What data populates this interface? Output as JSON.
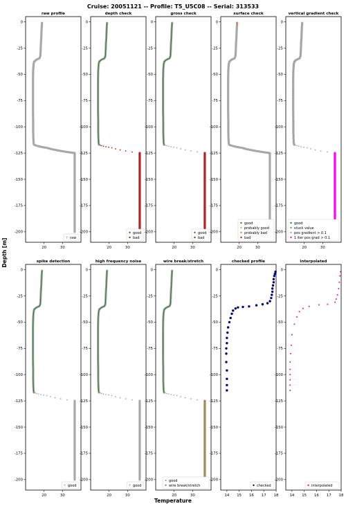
{
  "figure": {
    "title": "Cruise: 20051121 -- Profile: T5_U5C08 --  Serial: 313533",
    "ylabel": "Depth [m]",
    "xlabel": "Temperature"
  },
  "colors": {
    "raw_gray": "#a8a8a8",
    "good_green": "#2e7d32",
    "bad_red": "#b22222",
    "prob_good": "#9acd32",
    "prob_bad": "#e07b39",
    "stuck_olive": "#8b8b5a",
    "magenta": "#ff00ff",
    "wire_tan": "#a0895a",
    "navy": "#000080",
    "pink": "#ff1493"
  },
  "chart_data": [
    {
      "id": "p0",
      "type": "scatter",
      "title": "raw profile",
      "xlim": [
        10,
        40
      ],
      "ylim": [
        -210,
        5
      ],
      "xticks": [
        20,
        30
      ],
      "yticks": [
        0,
        -25,
        -50,
        -75,
        -100,
        -125,
        -150,
        -175,
        -200
      ],
      "x_unit": "",
      "legend": [
        {
          "label": "raw",
          "marker": "plus",
          "color": "raw_gray"
        }
      ],
      "legend_position": "lower-right",
      "layers": [
        {
          "source": "full",
          "style": "band",
          "color": "raw_gray",
          "name": "raw"
        }
      ]
    },
    {
      "id": "p1",
      "type": "scatter",
      "title": "depth check",
      "xlim": [
        10,
        40
      ],
      "ylim": [
        -210,
        5
      ],
      "xticks": [
        20,
        30
      ],
      "yticks": [
        0,
        -25,
        -50,
        -75,
        -100,
        -125,
        -150,
        -175,
        -200
      ],
      "legend": [
        {
          "label": "good",
          "marker": "dot",
          "color": "good_green"
        },
        {
          "label": "bad",
          "marker": "dot",
          "color": "bad_red"
        }
      ],
      "legend_position": "lower-right",
      "layers": [
        {
          "source": "upper",
          "style": "band",
          "color": "raw_gray",
          "name": "raw"
        },
        {
          "source": "upper",
          "style": "thin",
          "color": "good_green",
          "name": "good"
        },
        {
          "source": "tail",
          "style": "dots",
          "color": "bad_red",
          "name": "bad"
        },
        {
          "source": "bottom",
          "style": "band",
          "color": "bad_red",
          "name": "bad"
        }
      ]
    },
    {
      "id": "p2",
      "type": "scatter",
      "title": "gross check",
      "xlim": [
        10,
        40
      ],
      "ylim": [
        -210,
        5
      ],
      "xticks": [
        20,
        30
      ],
      "yticks": [
        0,
        -25,
        -50,
        -75,
        -100,
        -125,
        -150,
        -175,
        -200
      ],
      "legend": [
        {
          "label": "good",
          "marker": "dot",
          "color": "good_green"
        },
        {
          "label": "bad",
          "marker": "dot",
          "color": "bad_red"
        }
      ],
      "legend_position": "lower-right",
      "layers": [
        {
          "source": "upper",
          "style": "band",
          "color": "raw_gray",
          "name": "raw"
        },
        {
          "source": "upper",
          "style": "thin",
          "color": "good_green",
          "name": "good"
        },
        {
          "source": "tail",
          "style": "dots",
          "color": "raw_gray",
          "name": "raw"
        },
        {
          "source": "bottom",
          "style": "band",
          "color": "bad_red",
          "name": "bad"
        }
      ]
    },
    {
      "id": "p3",
      "type": "scatter",
      "title": "surface check",
      "xlim": [
        10,
        40
      ],
      "ylim": [
        -210,
        5
      ],
      "xticks": [
        20,
        30
      ],
      "yticks": [
        0,
        -25,
        -50,
        -75,
        -100,
        -125,
        -150,
        -175,
        -200
      ],
      "legend": [
        {
          "label": "good",
          "marker": "dot",
          "color": "good_green"
        },
        {
          "label": "probably good",
          "marker": "dot",
          "color": "prob_good"
        },
        {
          "label": "probably bad",
          "marker": "dot",
          "color": "prob_bad"
        },
        {
          "label": "bad",
          "marker": "dot",
          "color": "bad_red"
        }
      ],
      "legend_position": "lower-right",
      "layers": [
        {
          "source": "full",
          "style": "band",
          "color": "raw_gray",
          "name": "raw"
        },
        {
          "source": "surface",
          "style": "dots",
          "color": "prob_bad",
          "name": "probably bad"
        }
      ]
    },
    {
      "id": "p4",
      "type": "scatter",
      "title": "vertical gradient check",
      "xlim": [
        10,
        40
      ],
      "ylim": [
        -210,
        5
      ],
      "xticks": [
        20,
        30
      ],
      "yticks": [
        0,
        -25,
        -50,
        -75,
        -100,
        -125,
        -150,
        -175,
        -200
      ],
      "legend": [
        {
          "label": "good",
          "marker": "dot",
          "color": "good_green"
        },
        {
          "label": "stuck value",
          "marker": "dot",
          "color": "stuck_olive"
        },
        {
          "label": "pos gradient > 0.1",
          "marker": "dot",
          "color": "raw_gray"
        },
        {
          "label": "1 iter pos grad > 0.1",
          "marker": "dot",
          "color": "magenta"
        }
      ],
      "legend_position": "lower-right",
      "layers": [
        {
          "source": "upper",
          "style": "band",
          "color": "raw_gray",
          "name": "raw"
        },
        {
          "source": "upper",
          "style": "speckle",
          "color": "stuck_olive",
          "name": "stuck value"
        },
        {
          "source": "tail",
          "style": "dots",
          "color": "raw_gray",
          "name": "raw"
        },
        {
          "source": "bottom",
          "style": "band",
          "color": "magenta",
          "name": "1 iter pos grad > 0.1"
        }
      ]
    },
    {
      "id": "p5",
      "type": "scatter",
      "title": "spike detection",
      "xlim": [
        10,
        40
      ],
      "ylim": [
        -210,
        5
      ],
      "xticks": [
        20,
        30
      ],
      "yticks": [
        0,
        -25,
        -50,
        -75,
        -100,
        -125,
        -150,
        -175,
        -200
      ],
      "legend": [
        {
          "label": "good",
          "marker": "plus",
          "color": "raw_gray"
        }
      ],
      "legend_position": "lower-right",
      "layers": [
        {
          "source": "upper",
          "style": "band",
          "color": "raw_gray",
          "name": "raw"
        },
        {
          "source": "upper",
          "style": "thin",
          "color": "good_green",
          "name": "good"
        },
        {
          "source": "tail",
          "style": "dots",
          "color": "raw_gray",
          "name": "raw"
        },
        {
          "source": "bottom",
          "style": "band",
          "color": "raw_gray",
          "name": "raw"
        }
      ]
    },
    {
      "id": "p6",
      "type": "scatter",
      "title": "high frequency noise",
      "xlim": [
        10,
        40
      ],
      "ylim": [
        -210,
        5
      ],
      "xticks": [
        20,
        30
      ],
      "yticks": [
        0,
        -25,
        -50,
        -75,
        -100,
        -125,
        -150,
        -175,
        -200
      ],
      "legend": [
        {
          "label": "good",
          "marker": "plus",
          "color": "raw_gray"
        }
      ],
      "legend_position": "lower-right",
      "layers": [
        {
          "source": "upper",
          "style": "band",
          "color": "raw_gray",
          "name": "raw"
        },
        {
          "source": "upper",
          "style": "thin",
          "color": "good_green",
          "name": "good"
        },
        {
          "source": "tail",
          "style": "dots",
          "color": "raw_gray",
          "name": "raw"
        },
        {
          "source": "bottom",
          "style": "band",
          "color": "raw_gray",
          "name": "raw"
        }
      ]
    },
    {
      "id": "p7",
      "type": "scatter",
      "title": "wire break/stretch",
      "xlim": [
        10,
        40
      ],
      "ylim": [
        -210,
        5
      ],
      "xticks": [
        20,
        30
      ],
      "yticks": [
        0,
        -25,
        -50,
        -75,
        -100,
        -125,
        -150,
        -175,
        -200
      ],
      "legend": [
        {
          "label": "good",
          "marker": "dot",
          "color": "raw_gray"
        },
        {
          "label": "wire break/stretch",
          "marker": "dot",
          "color": "wire_tan"
        }
      ],
      "legend_position": "lower-right",
      "layers": [
        {
          "source": "upper",
          "style": "band",
          "color": "raw_gray",
          "name": "raw"
        },
        {
          "source": "upper",
          "style": "thin",
          "color": "good_green",
          "name": "good"
        },
        {
          "source": "tail",
          "style": "dots",
          "color": "raw_gray",
          "name": "raw"
        },
        {
          "source": "bottom",
          "style": "band",
          "color": "wire_tan",
          "name": "wire break/stretch"
        }
      ]
    },
    {
      "id": "p8",
      "type": "scatter",
      "title": "checked profile",
      "xlim": [
        13.5,
        18
      ],
      "ylim": [
        -210,
        5
      ],
      "xticks": [
        14,
        15,
        16,
        17,
        18
      ],
      "yticks": [
        0,
        -25,
        -50,
        -75,
        -100,
        -125,
        -150,
        -175,
        -200
      ],
      "legend": [
        {
          "label": "checked",
          "marker": "dot",
          "color": "navy"
        }
      ],
      "legend_position": "lower-right",
      "layers": [
        {
          "source": "checked",
          "style": "bigdots",
          "color": "navy",
          "name": "checked"
        }
      ]
    },
    {
      "id": "p9",
      "type": "scatter",
      "title": "interpolated",
      "xlim": [
        13.5,
        18
      ],
      "ylim": [
        -210,
        5
      ],
      "xticks": [
        14,
        15,
        16,
        17,
        18
      ],
      "yticks": [
        0,
        -25,
        -50,
        -75,
        -100,
        -125,
        -150,
        -175,
        -200
      ],
      "legend": [
        {
          "label": "interpolated",
          "marker": "dot",
          "color": "pink"
        }
      ],
      "legend_position": "lower-right",
      "layers": [
        {
          "source": "interp",
          "style": "smalldots",
          "color": "pink",
          "name": "interpolated"
        }
      ]
    }
  ],
  "profiles": {
    "upper": {
      "x": [
        18.9,
        18.8,
        18.7,
        18.6,
        18.5,
        18.3,
        18.2,
        18.1,
        18.0,
        17.9,
        17.7,
        17.3,
        16.5,
        15.5,
        14.6,
        14.3,
        14.1,
        14.0,
        14.0,
        14.0,
        14.0,
        14.1,
        14.1,
        14.2,
        14.3,
        14.5
      ],
      "y": [
        -1,
        -3,
        -6,
        -10,
        -15,
        -20,
        -25,
        -29,
        -32,
        -33,
        -34,
        -35,
        -35.5,
        -36.5,
        -38,
        -41,
        -46,
        -55,
        -65,
        -75,
        -85,
        -95,
        -105,
        -111,
        -115,
        -117
      ]
    },
    "tail": {
      "x": [
        15.2,
        16.0,
        17.0,
        18.3,
        19.8,
        21.5,
        23.5,
        26.0,
        29.0,
        32.5
      ],
      "y": [
        -117.5,
        -118,
        -118.5,
        -119,
        -119.5,
        -120,
        -121,
        -122,
        -123,
        -124
      ]
    },
    "bottom": {
      "x": [
        36.6,
        36.6
      ],
      "y": [
        -125,
        -200
      ]
    },
    "full": {
      "x": [
        18.9,
        18.8,
        18.7,
        18.6,
        18.5,
        18.3,
        18.2,
        18.1,
        18.0,
        17.9,
        17.7,
        17.3,
        16.5,
        15.5,
        14.6,
        14.3,
        14.1,
        14.0,
        14.0,
        14.0,
        14.0,
        14.1,
        14.1,
        14.2,
        14.3,
        14.5,
        15.2,
        16.0,
        17.0,
        18.3,
        19.8,
        21.5,
        23.5,
        26.0,
        29.0,
        32.5,
        36.6,
        36.6
      ],
      "y": [
        -1,
        -3,
        -6,
        -10,
        -15,
        -20,
        -25,
        -29,
        -32,
        -33,
        -34,
        -35,
        -35.5,
        -36.5,
        -38,
        -41,
        -46,
        -55,
        -65,
        -75,
        -85,
        -95,
        -105,
        -111,
        -115,
        -117,
        -117.5,
        -118,
        -118.5,
        -119,
        -119.5,
        -120,
        -121,
        -122,
        -123,
        -124,
        -125,
        -200
      ]
    },
    "surface": {
      "x": [
        18.6,
        18.8,
        18.9
      ],
      "y": [
        -0.5,
        -1.5,
        -2.5
      ]
    },
    "checked": {
      "x": [
        17.95,
        17.9,
        17.85,
        17.8,
        17.8,
        17.75,
        17.7,
        17.7,
        17.65,
        17.6,
        17.5,
        17.3,
        16.9,
        16.4,
        15.8,
        15.3,
        14.9,
        14.7,
        14.5,
        14.4,
        14.3,
        14.2,
        14.1,
        14.05,
        14.0,
        14.0,
        13.95,
        13.95,
        13.95,
        14.0,
        14.0,
        14.0,
        14.0
      ],
      "y": [
        -2,
        -4,
        -6,
        -9,
        -12,
        -15,
        -18,
        -21,
        -24,
        -27,
        -30,
        -32,
        -33,
        -34,
        -35,
        -35.5,
        -36,
        -37,
        -39,
        -42,
        -46,
        -50,
        -55,
        -60,
        -65,
        -70,
        -75,
        -80,
        -88,
        -96,
        -104,
        -110,
        -115
      ]
    },
    "interp": {
      "x": [
        17.95,
        17.9,
        17.85,
        17.8,
        17.7,
        17.6,
        17.5,
        16.9,
        16.2,
        15.4,
        14.9,
        14.6,
        14.4,
        14.2,
        14.0,
        13.95,
        13.9,
        13.85,
        13.85,
        13.85,
        13.85,
        13.85,
        13.85
      ],
      "y": [
        -2,
        -6,
        -12,
        -18,
        -24,
        -28,
        -31,
        -33,
        -33.5,
        -35,
        -37,
        -40,
        -45,
        -52,
        -62,
        -72,
        -80,
        -88,
        -95,
        -100,
        -105,
        -110,
        -115
      ]
    }
  }
}
